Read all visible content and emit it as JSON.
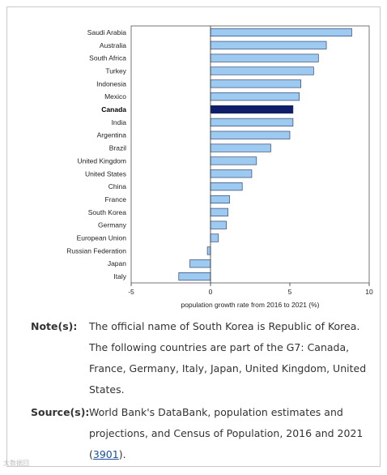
{
  "chart_data": {
    "type": "bar",
    "orientation": "horizontal",
    "categories": [
      "Saudi Arabia",
      "Australia",
      "South Africa",
      "Turkey",
      "Indonesia",
      "Mexico",
      "Canada",
      "India",
      "Argentina",
      "Brazil",
      "United Kingdom",
      "United States",
      "China",
      "France",
      "South Korea",
      "Germany",
      "European Union",
      "Russian Federation",
      "Japan",
      "Italy"
    ],
    "values": [
      8.9,
      7.3,
      6.8,
      6.5,
      5.7,
      5.6,
      5.2,
      5.2,
      5.0,
      3.8,
      2.9,
      2.6,
      2.0,
      1.2,
      1.1,
      1.0,
      0.5,
      -0.2,
      -1.3,
      -2.0
    ],
    "highlight": "Canada",
    "xlim": [
      -5,
      10
    ],
    "xticks": [
      "-5",
      "0",
      "5",
      "10"
    ],
    "xlabel": "population growth rate from 2016 to 2021 (%)",
    "bar_color": "#9ccaf0",
    "highlight_color": "#0f1d6b",
    "grid": false
  },
  "notes": {
    "note_label": "Note(s):",
    "note_lines": [
      "The official name of South Korea is Republic of Korea.",
      "The following countries are part of the G7: Canada, France, Germany, Italy, Japan, United Kingdom, United States."
    ],
    "source_label": "Source(s):",
    "source_text": "World Bank's DataBank, population estimates and projections, and Census of Population, 2016 and 2021 (",
    "source_link": "3901",
    "source_end": ")."
  },
  "watermark": "大数据回"
}
